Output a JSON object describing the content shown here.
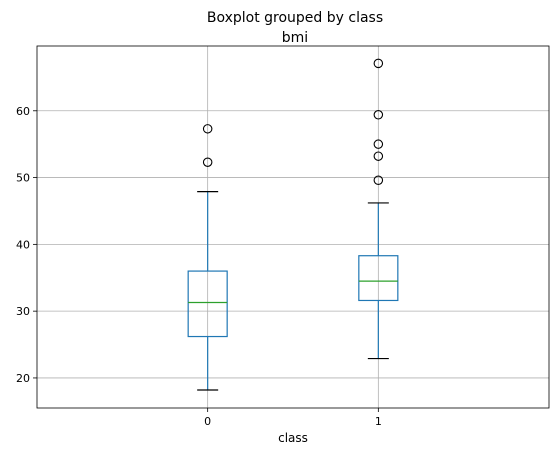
{
  "chart_data": {
    "type": "box",
    "title": "Boxplot grouped by class",
    "subtitle": "bmi",
    "xlabel": "class",
    "ylabel": "",
    "ylim": [
      15.5,
      69.7
    ],
    "yticks": [
      20,
      30,
      40,
      50,
      60
    ],
    "grid": true,
    "categories": [
      "0",
      "1"
    ],
    "boxes": [
      {
        "category": "0",
        "whisker_low": 18.2,
        "q1": 26.2,
        "median": 31.3,
        "q3": 36.0,
        "whisker_high": 47.9,
        "outliers": [
          52.3,
          57.3
        ]
      },
      {
        "category": "1",
        "whisker_low": 22.9,
        "q1": 31.6,
        "median": 34.5,
        "q3": 38.3,
        "whisker_high": 46.2,
        "outliers": [
          49.6,
          53.2,
          55.0,
          59.4,
          67.1
        ]
      }
    ],
    "colors": {
      "box": "#1f77b4",
      "median": "#2ca02c",
      "cap": "#000000",
      "outlier": "#000000",
      "grid": "#b0b0b0",
      "axes": "#000000"
    }
  }
}
